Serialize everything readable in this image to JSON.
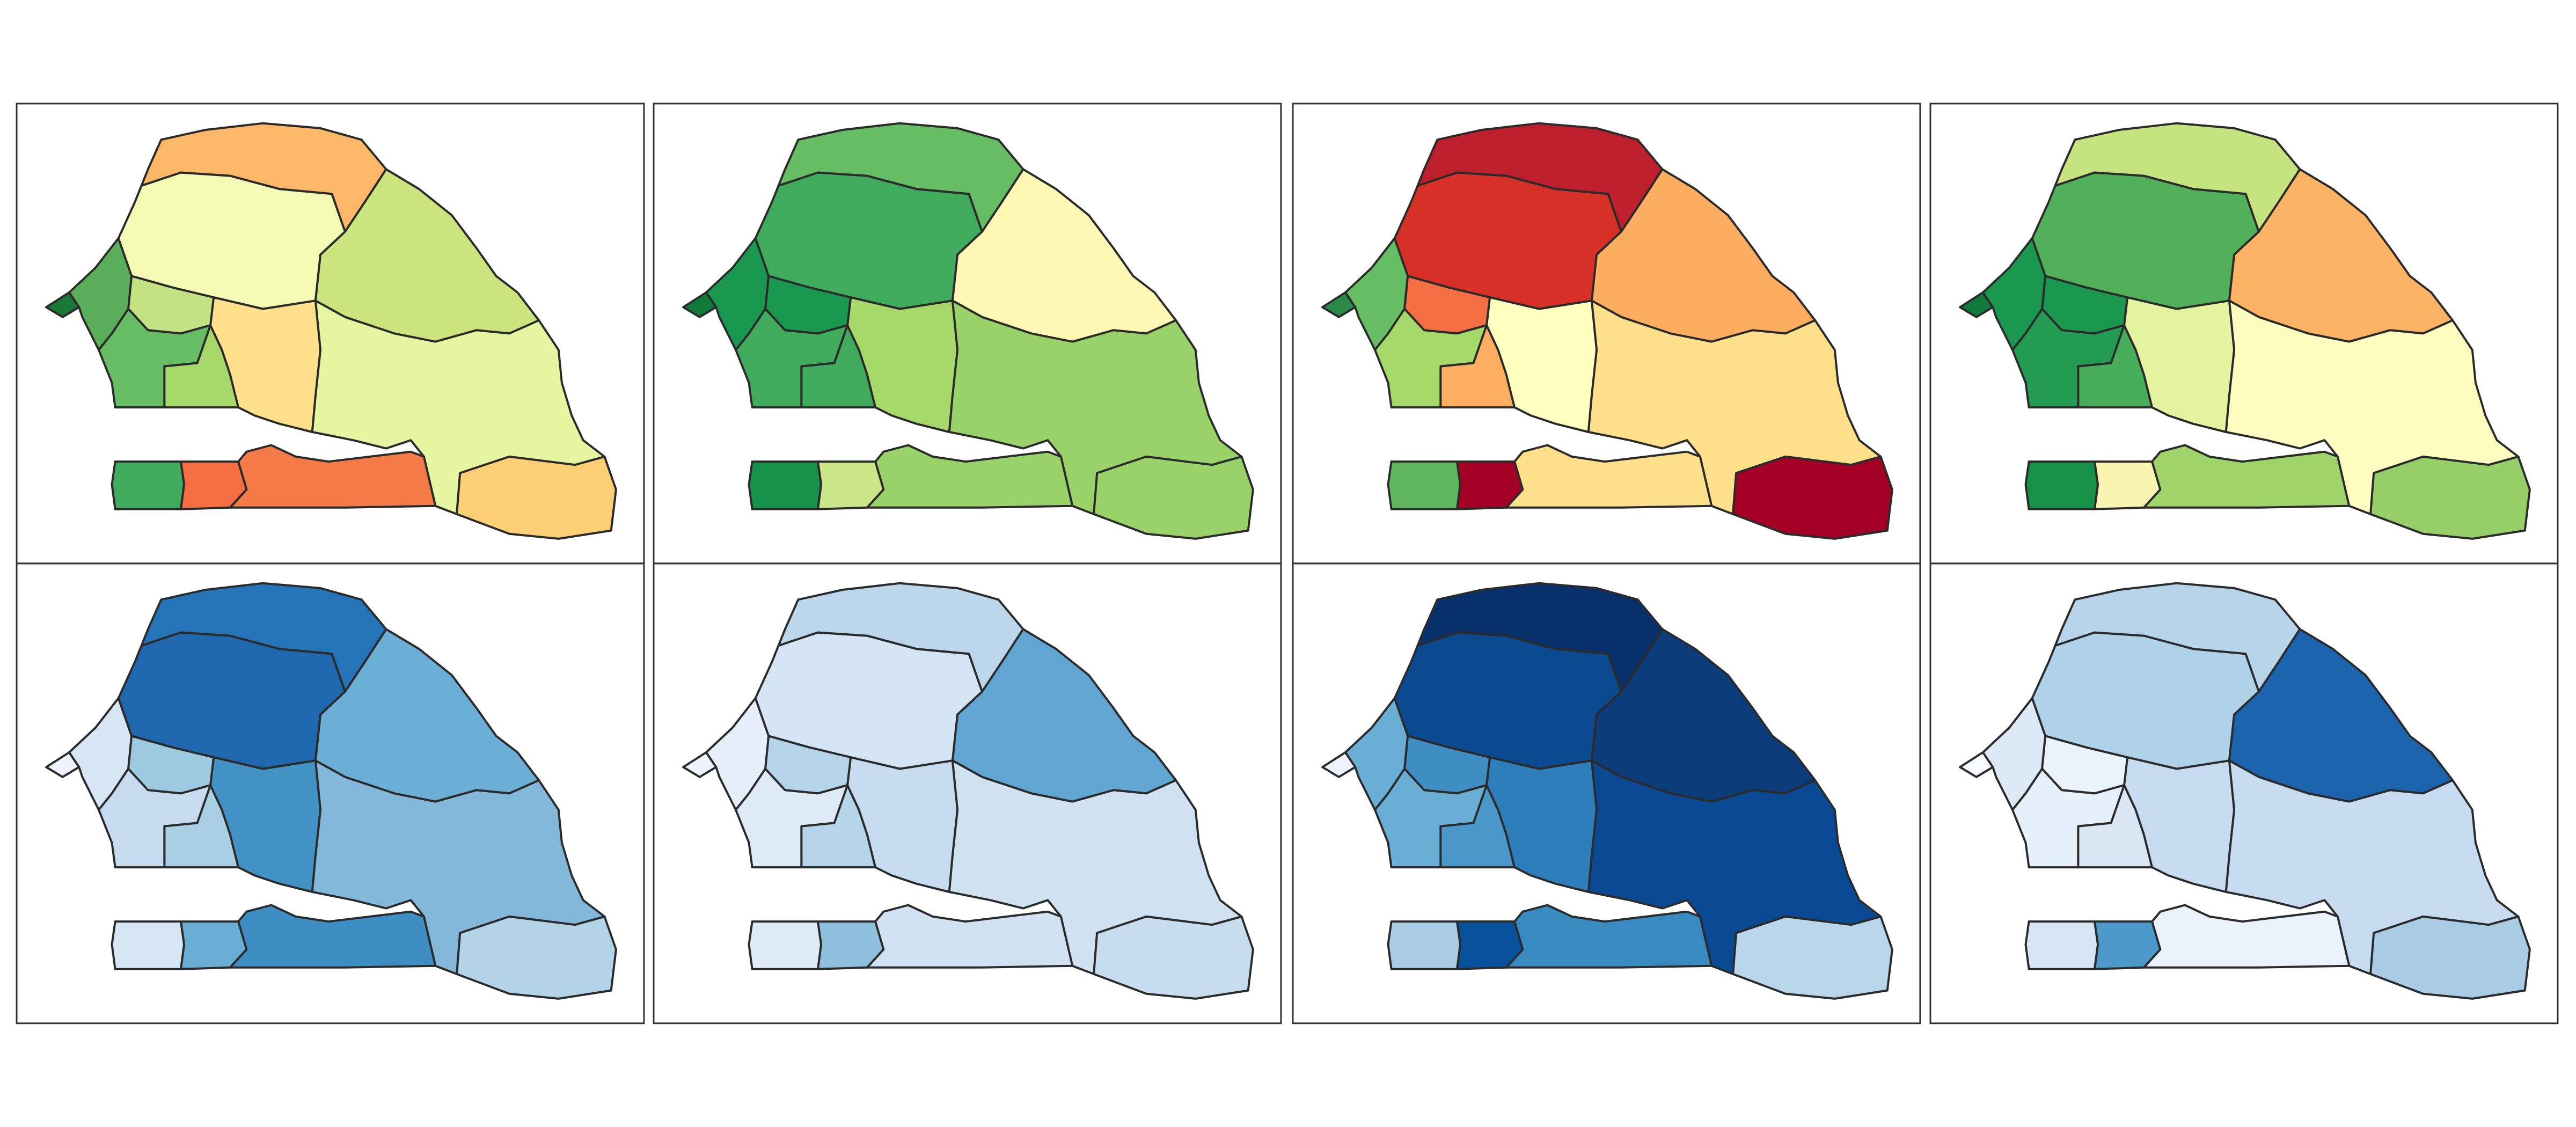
{
  "panels": [
    {
      "regions": [
        {
          "color": "#1a7837"
        },
        {
          "color": "#5aae5a"
        },
        {
          "color": "#c3e383"
        },
        {
          "color": "#66bd63"
        },
        {
          "color": "#a6d96a"
        },
        {
          "color": "#fee08b"
        },
        {
          "color": "#f4f9b4"
        },
        {
          "color": "#fdb768"
        },
        {
          "color": "#cbe47d"
        },
        {
          "color": "#e6f5a0"
        },
        {
          "color": "#fdcf74"
        },
        {
          "color": "#41ab5d"
        },
        {
          "color": "#f46d43"
        },
        {
          "color": "#f47a47"
        }
      ]
    },
    {
      "regions": [
        {
          "color": "#0f7a3a"
        },
        {
          "color": "#1a9850"
        },
        {
          "color": "#1a9850"
        },
        {
          "color": "#41ab5d"
        },
        {
          "color": "#41ab5d"
        },
        {
          "color": "#a6d96a"
        },
        {
          "color": "#41ab5d"
        },
        {
          "color": "#66bd63"
        },
        {
          "color": "#fff7b3"
        },
        {
          "color": "#9ad26a"
        },
        {
          "color": "#9ad26a"
        },
        {
          "color": "#17924b"
        },
        {
          "color": "#cbe686"
        },
        {
          "color": "#9ad26a"
        }
      ]
    },
    {
      "regions": [
        {
          "color": "#2a8a4a"
        },
        {
          "color": "#66bd63"
        },
        {
          "color": "#f46d43"
        },
        {
          "color": "#a6d96a"
        },
        {
          "color": "#fdae61"
        },
        {
          "color": "#ffffbf"
        },
        {
          "color": "#d73027"
        },
        {
          "color": "#bd1f2d"
        },
        {
          "color": "#fdad60"
        },
        {
          "color": "#fee08b"
        },
        {
          "color": "#a50026"
        },
        {
          "color": "#5fb65c"
        },
        {
          "color": "#a50026"
        },
        {
          "color": "#fee08b"
        }
      ]
    },
    {
      "regions": [
        {
          "color": "#0f7a3a"
        },
        {
          "color": "#1a9850"
        },
        {
          "color": "#1a9850"
        },
        {
          "color": "#249b52"
        },
        {
          "color": "#48ad5b"
        },
        {
          "color": "#e4f3a0"
        },
        {
          "color": "#52b05b"
        },
        {
          "color": "#c5e37e"
        },
        {
          "color": "#fdb366"
        },
        {
          "color": "#fffcc0"
        },
        {
          "color": "#96cf68"
        },
        {
          "color": "#179048"
        },
        {
          "color": "#f9f4b0"
        },
        {
          "color": "#9fd46b"
        }
      ]
    },
    {
      "regions": [
        {
          "color": "#eff3ff"
        },
        {
          "color": "#d6e6f4"
        },
        {
          "color": "#9ecae1"
        },
        {
          "color": "#c6dbef"
        },
        {
          "color": "#aacfe5"
        },
        {
          "color": "#4292c6"
        },
        {
          "color": "#1f68ad"
        },
        {
          "color": "#2574b8"
        },
        {
          "color": "#6baed6"
        },
        {
          "color": "#84b8da"
        },
        {
          "color": "#b3d3e8"
        },
        {
          "color": "#d6e6f4"
        },
        {
          "color": "#6aaed6"
        },
        {
          "color": "#3e8ec4"
        }
      ]
    },
    {
      "regions": [
        {
          "color": "#eff3ff"
        },
        {
          "color": "#e6eff9"
        },
        {
          "color": "#b6d4e9"
        },
        {
          "color": "#deebf7"
        },
        {
          "color": "#b6d4e9"
        },
        {
          "color": "#c6dbef"
        },
        {
          "color": "#d4e4f4"
        },
        {
          "color": "#bcd7eb"
        },
        {
          "color": "#61a5d3"
        },
        {
          "color": "#d0e1f2"
        },
        {
          "color": "#c7dcef"
        },
        {
          "color": "#deebf7"
        },
        {
          "color": "#8ebfdd"
        },
        {
          "color": "#d0e1f2"
        }
      ]
    },
    {
      "regions": [
        {
          "color": "#eff3ff"
        },
        {
          "color": "#6aaed6"
        },
        {
          "color": "#3e8ec4"
        },
        {
          "color": "#6aaed6"
        },
        {
          "color": "#4a98c9"
        },
        {
          "color": "#2f7ebc"
        },
        {
          "color": "#0b4a90"
        },
        {
          "color": "#08306b"
        },
        {
          "color": "#0d3c7a"
        },
        {
          "color": "#0a4a94"
        },
        {
          "color": "#bad6eb"
        },
        {
          "color": "#a9cce4"
        },
        {
          "color": "#08519c"
        },
        {
          "color": "#3a8ac2"
        }
      ]
    },
    {
      "regions": [
        {
          "color": "#f7fbff"
        },
        {
          "color": "#dbe9f6"
        },
        {
          "color": "#eaf2fb"
        },
        {
          "color": "#e6f0fa"
        },
        {
          "color": "#d9e7f5"
        },
        {
          "color": "#c6dbef"
        },
        {
          "color": "#b0d2e8"
        },
        {
          "color": "#b7d4ea"
        },
        {
          "color": "#1c64ad"
        },
        {
          "color": "#c6dbef"
        },
        {
          "color": "#a9cce4"
        },
        {
          "color": "#d6e6f4"
        },
        {
          "color": "#4d99ca"
        },
        {
          "color": "#e9f2fa"
        }
      ]
    }
  ]
}
